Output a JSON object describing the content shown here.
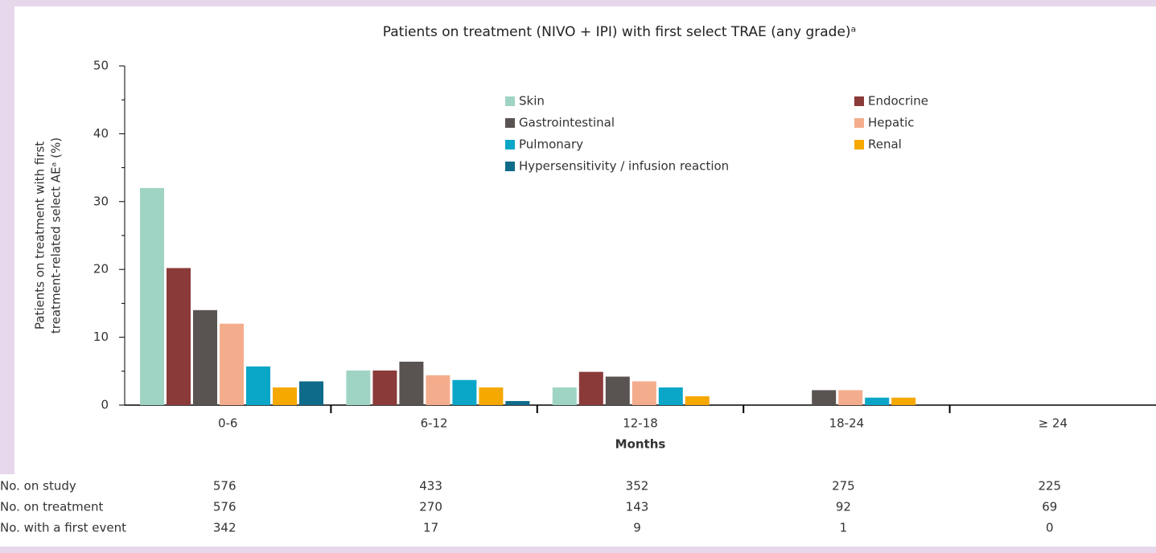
{
  "chart_data": {
    "type": "bar",
    "title": "Patients on treatment (NIVO + IPI) with first select TRAE (any grade)ᵃ",
    "y_label": [
      "Patients on treatment with first",
      "treatment-related select AEᵃ (%)"
    ],
    "x_label": "Months",
    "categories": [
      "0-6",
      "6-12",
      "12-18",
      "18-24",
      "≥ 24"
    ],
    "series": [
      {
        "name": "Skin",
        "color": "#9fd4c4",
        "values": [
          32,
          5.1,
          2.6,
          0,
          0
        ]
      },
      {
        "name": "Endocrine",
        "color": "#8b3a3a",
        "values": [
          20.2,
          5.1,
          4.9,
          0,
          0
        ]
      },
      {
        "name": "Gastrointestinal",
        "color": "#595351",
        "values": [
          14,
          6.4,
          4.2,
          2.2,
          0
        ]
      },
      {
        "name": "Hepatic",
        "color": "#f4ad8c",
        "values": [
          12,
          4.4,
          3.5,
          2.2,
          0
        ]
      },
      {
        "name": "Pulmonary",
        "color": "#0aa6c8",
        "values": [
          5.7,
          3.7,
          2.6,
          1.1,
          0
        ]
      },
      {
        "name": "Renal",
        "color": "#f5a800",
        "values": [
          2.6,
          2.6,
          1.3,
          1.1,
          0
        ]
      },
      {
        "name": "Hypersensitivity / infusion reaction",
        "color": "#0f6b8a",
        "values": [
          3.5,
          0.6,
          0,
          0,
          0
        ]
      }
    ],
    "ylim": [
      0,
      50
    ],
    "yticks": [
      0,
      10,
      20,
      30,
      40,
      50
    ],
    "risk_table": [
      {
        "label": "No. on study",
        "values": [
          576,
          433,
          352,
          275,
          225
        ]
      },
      {
        "label": "No. on treatment",
        "values": [
          576,
          270,
          143,
          92,
          69
        ]
      },
      {
        "label": "No. with a first event",
        "values": [
          342,
          17,
          9,
          1,
          0
        ]
      }
    ]
  }
}
